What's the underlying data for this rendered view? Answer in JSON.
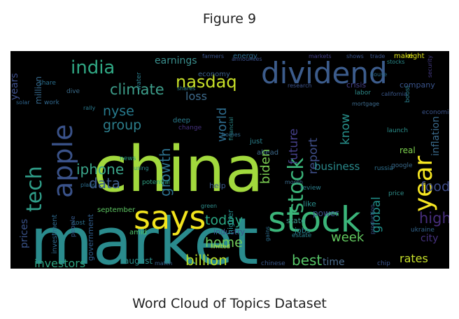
{
  "figure_title": "Figure 9",
  "caption": "Word Cloud of Topics Dataset",
  "chart_data": {
    "type": "wordcloud",
    "background": "#000000",
    "colormap": "viridis",
    "words": [
      {
        "text": "market",
        "color": "#2a8b8d"
      },
      {
        "text": "china",
        "color": "#a2d93d"
      },
      {
        "text": "stock",
        "color": "#3bb57a"
      },
      {
        "text": "says",
        "color": "#f2e41d"
      },
      {
        "text": "dividend",
        "color": "#3c5c8c"
      },
      {
        "text": "apple",
        "color": "#3a5289"
      },
      {
        "text": "tech",
        "color": "#2f9d88"
      },
      {
        "text": "year",
        "color": "#f5e522"
      },
      {
        "text": "india",
        "color": "#30a884"
      },
      {
        "text": "nasdaq",
        "color": "#c8e028"
      },
      {
        "text": "stock",
        "color": "#3bb57a"
      },
      {
        "text": "climate",
        "color": "#3d9d8a"
      },
      {
        "text": "iphone",
        "color": "#3ba68a"
      },
      {
        "text": "nyse",
        "color": "#277b8e"
      },
      {
        "text": "group",
        "color": "#2c7f8d"
      },
      {
        "text": "growth",
        "color": "#2d718e"
      },
      {
        "text": "world",
        "color": "#2e6c8e"
      },
      {
        "text": "biden",
        "color": "#7ccf52"
      },
      {
        "text": "future",
        "color": "#45408a"
      },
      {
        "text": "report",
        "color": "#40508b"
      },
      {
        "text": "know",
        "color": "#278f8a"
      },
      {
        "text": "inflation",
        "color": "#3a6a8c"
      },
      {
        "text": "business",
        "color": "#2a8a8c"
      },
      {
        "text": "data",
        "color": "#3e5d8c"
      },
      {
        "text": "food",
        "color": "#3e4c8a"
      },
      {
        "text": "high",
        "color": "#472e7c"
      },
      {
        "text": "week",
        "color": "#62c85f"
      },
      {
        "text": "today",
        "color": "#2aa683"
      },
      {
        "text": "home",
        "color": "#70cb5b"
      },
      {
        "text": "global",
        "color": "#21928c"
      },
      {
        "text": "billion",
        "color": "#b6dd2c"
      },
      {
        "text": "best",
        "color": "#56c467"
      },
      {
        "text": "investors",
        "color": "#2ea380"
      },
      {
        "text": "prices",
        "color": "#3b548b"
      },
      {
        "text": "rates",
        "color": "#c7e02a"
      },
      {
        "text": "time",
        "color": "#4c6e8f"
      },
      {
        "text": "city",
        "color": "#46327f"
      },
      {
        "text": "loss",
        "color": "#3e6b8c"
      },
      {
        "text": "earnings",
        "color": "#3a8f8d"
      },
      {
        "text": "years",
        "color": "#3d4e8a"
      },
      {
        "text": "million",
        "color": "#36698d"
      },
      {
        "text": "august",
        "color": "#2b8f8c"
      },
      {
        "text": "september",
        "color": "#5ec662"
      },
      {
        "text": "government",
        "color": "#2f5c8c"
      },
      {
        "text": "investment",
        "color": "#2e6a8e"
      },
      {
        "text": "people",
        "color": "#37598c"
      },
      {
        "text": "potential",
        "color": "#2fa284"
      },
      {
        "text": "industry",
        "color": "#3b528b"
      },
      {
        "text": "higher",
        "color": "#238a8d"
      },
      {
        "text": "power",
        "color": "#3e518a"
      },
      {
        "text": "state",
        "color": "#3b9a8a"
      },
      {
        "text": "jobs",
        "color": "#2a818e"
      },
      {
        "text": "like",
        "color": "#2a8d8c"
      },
      {
        "text": "real",
        "color": "#7ed34f"
      },
      {
        "text": "amid",
        "color": "#4ec36b"
      },
      {
        "text": "help",
        "color": "#3d5a8c"
      },
      {
        "text": "news",
        "color": "#2a9a86"
      },
      {
        "text": "deep",
        "color": "#2c7d8e"
      },
      {
        "text": "work",
        "color": "#31688e"
      },
      {
        "text": "dive",
        "color": "#3c6d8c"
      },
      {
        "text": "crisis",
        "color": "#45408a"
      },
      {
        "text": "company",
        "color": "#3a548c"
      },
      {
        "text": "economy",
        "color": "#3d628c"
      },
      {
        "text": "energy",
        "color": "#2e6d8e"
      },
      {
        "text": "research",
        "color": "#3d548c"
      },
      {
        "text": "trade",
        "color": "#3b548b"
      },
      {
        "text": "make",
        "color": "#dde31a"
      },
      {
        "text": "right",
        "color": "#dde31a"
      },
      {
        "text": "limited",
        "color": "#c7e02a"
      },
      {
        "text": "match",
        "color": "#3a628c"
      },
      {
        "text": "ahead",
        "color": "#3d6a8c"
      },
      {
        "text": "just",
        "color": "#2b818d"
      },
      {
        "text": "launch",
        "color": "#2b8f8c"
      },
      {
        "text": "google",
        "color": "#3a6a8c"
      },
      {
        "text": "green",
        "color": "#2f8e8c"
      },
      {
        "text": "review",
        "color": "#2b7e8d"
      },
      {
        "text": "estate",
        "color": "#2a7f8d"
      },
      {
        "text": "ukraine",
        "color": "#33648c"
      },
      {
        "text": "production",
        "color": "#3a548b"
      },
      {
        "text": "economic",
        "color": "#3b548b"
      },
      {
        "text": "mortgage",
        "color": "#3d6a8c"
      },
      {
        "text": "chinese",
        "color": "#3c5a8a"
      },
      {
        "text": "share",
        "color": "#2a6f8e"
      },
      {
        "text": "solar",
        "color": "#2e658d"
      },
      {
        "text": "shares",
        "color": "#2a7d8d"
      },
      {
        "text": "change",
        "color": "#46327f"
      },
      {
        "text": "water",
        "color": "#2b7e8d"
      },
      {
        "text": "financial",
        "color": "#2b8b8c"
      },
      {
        "text": "homes",
        "color": "#2f6a8d"
      },
      {
        "text": "using",
        "color": "#2f8c8b"
      },
      {
        "text": "plans",
        "color": "#2b6d8e"
      },
      {
        "text": "gains",
        "color": "#2d6e8e"
      },
      {
        "text": "labor",
        "color": "#2f8c8b"
      },
      {
        "text": "announces",
        "color": "#3c508b"
      },
      {
        "text": "california",
        "color": "#3b588b"
      },
      {
        "text": "security",
        "color": "#443a83"
      },
      {
        "text": "cost",
        "color": "#2b708e"
      },
      {
        "text": "boost",
        "color": "#2a7f8d"
      },
      {
        "text": "rally",
        "color": "#2a7a8e"
      },
      {
        "text": "month",
        "color": "#3a6a8c"
      },
      {
        "text": "price",
        "color": "#2f8f8b"
      },
      {
        "text": "russia",
        "color": "#2e708e"
      },
      {
        "text": "house",
        "color": "#2d6e8e"
      },
      {
        "text": "chip",
        "color": "#3b548b"
      },
      {
        "text": "stocks",
        "color": "#2a8c8c"
      },
      {
        "text": "farmers",
        "color": "#3b548b"
      },
      {
        "text": "markets",
        "color": "#45408a"
      },
      {
        "text": "shows",
        "color": "#3b548b"
      }
    ]
  }
}
